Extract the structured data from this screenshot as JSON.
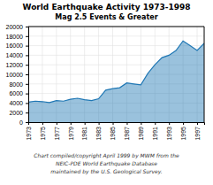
{
  "chart_data": {
    "type": "area",
    "title": "World Earthquake Activity 1973-1998",
    "subtitle": "Mag 2.5 Events & Greater",
    "x": [
      1973,
      1974,
      1975,
      1976,
      1977,
      1978,
      1979,
      1980,
      1981,
      1982,
      1983,
      1984,
      1985,
      1986,
      1987,
      1988,
      1989,
      1990,
      1991,
      1992,
      1993,
      1994,
      1995,
      1996,
      1997,
      1998
    ],
    "values": [
      4200,
      4400,
      4300,
      4100,
      4500,
      4400,
      4800,
      5000,
      4700,
      4500,
      4900,
      6700,
      7000,
      7200,
      8200,
      8000,
      7800,
      10200,
      12000,
      13500,
      14000,
      15000,
      17000,
      16000,
      15000,
      16500
    ],
    "xlim": [
      1973,
      1998
    ],
    "xticks": [
      1973,
      1975,
      1977,
      1979,
      1981,
      1983,
      1985,
      1987,
      1989,
      1991,
      1993,
      1995,
      1997
    ],
    "ylim": [
      0,
      20000
    ],
    "yticks": [
      0,
      2000,
      4000,
      6000,
      8000,
      10000,
      12000,
      14000,
      16000,
      18000,
      20000
    ],
    "grid": true,
    "annotations": [
      "Chart compiled/copyright April 1999 by MWM from the",
      "NEIC-PDE World Earthquake Database",
      "maintained by the U.S. Geological Survey."
    ]
  }
}
